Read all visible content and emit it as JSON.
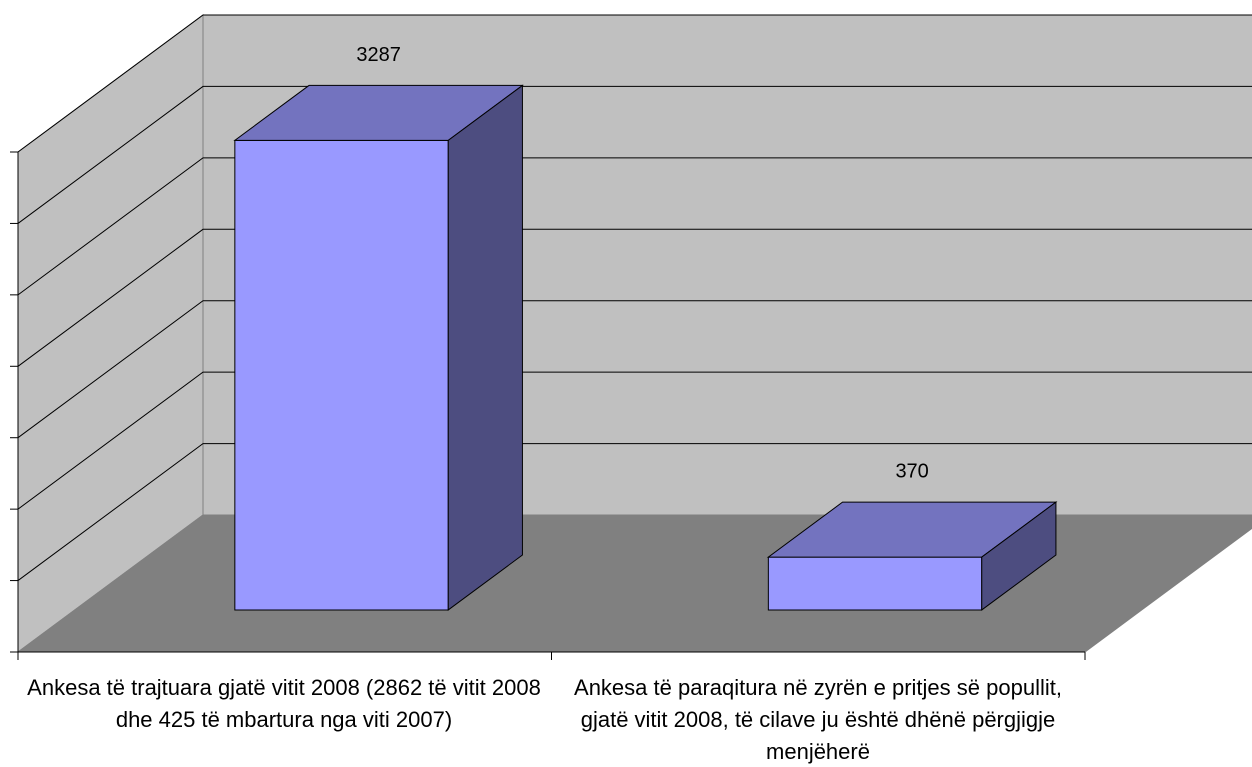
{
  "chart_data": {
    "type": "bar3d",
    "categories": [
      "Ankesa të trajtuara gjatë vitit 2008 (2862 të vitit 2008 dhe 425 të mbartura nga viti 2007)",
      "Ankesa të paraqitura në zyrën e pritjes së popullit, gjatë vitit 2008, të cilave ju është dhënë përgjigje menjëherë"
    ],
    "values": [
      3287,
      370
    ],
    "color": "#9999ff",
    "ylim": [
      0,
      3500
    ],
    "yticks": [
      0,
      500,
      1000,
      1500,
      2000,
      2500,
      3000,
      3500
    ],
    "grid": true
  }
}
